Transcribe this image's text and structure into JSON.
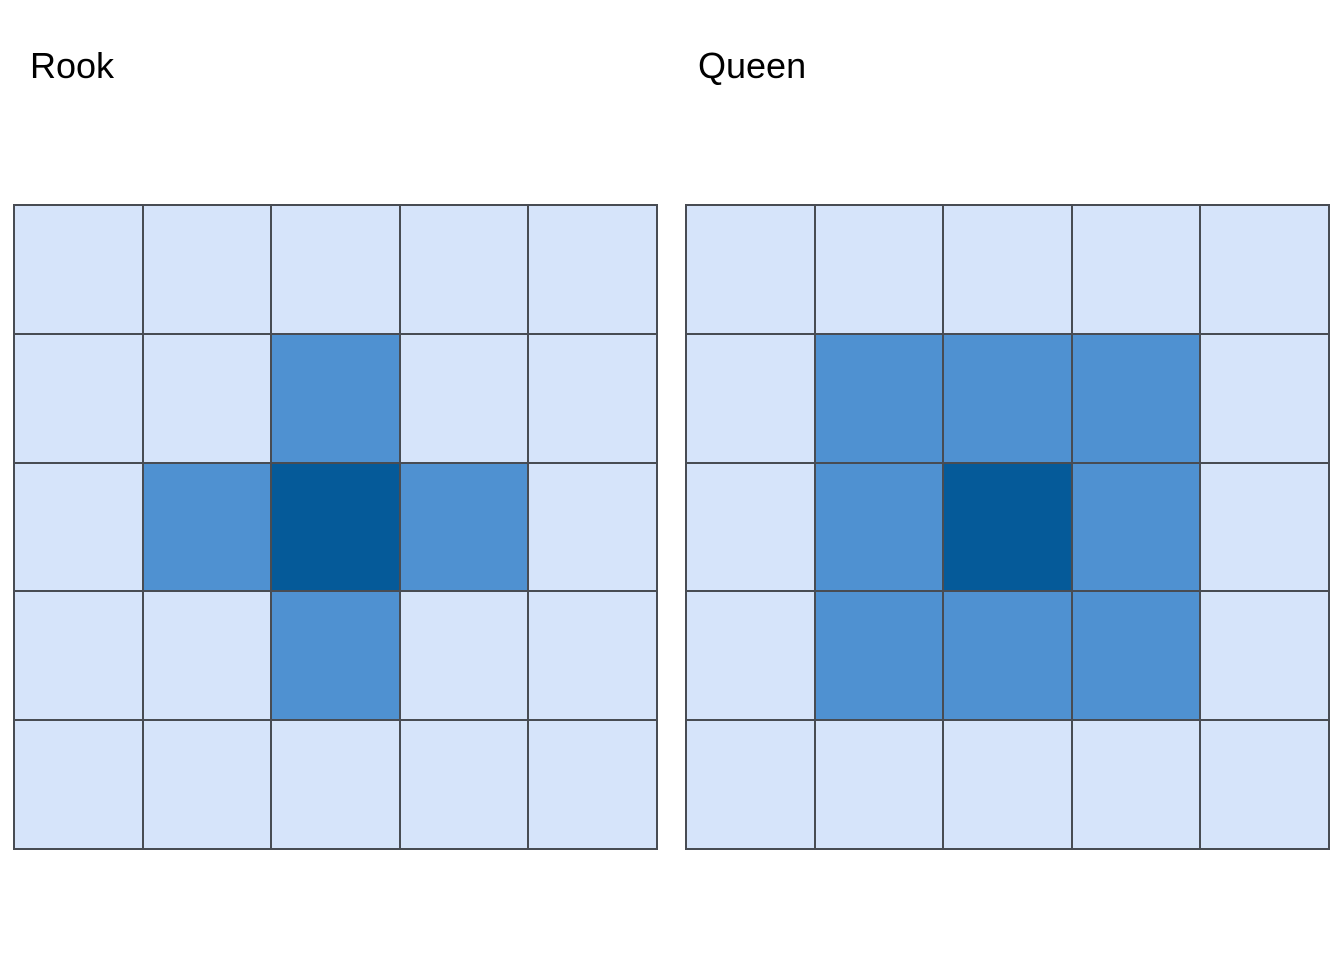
{
  "figure": {
    "background_color": "#ffffff",
    "grid_line_color": "#484c53"
  },
  "chart_data": [
    {
      "type": "heatmap",
      "title": "Rook",
      "rows": 5,
      "cols": 5,
      "matrix": [
        [
          0,
          0,
          0,
          0,
          0
        ],
        [
          0,
          0,
          1,
          0,
          0
        ],
        [
          0,
          1,
          2,
          1,
          0
        ],
        [
          0,
          0,
          1,
          0,
          0
        ],
        [
          0,
          0,
          0,
          0,
          0
        ]
      ],
      "color_scale": {
        "0": "#d6e4fa",
        "1": "#4f91d1",
        "2": "#055a99"
      },
      "legend": "none",
      "axes": "none",
      "description": "5x5 cells; center cell darkest; orthogonally adjacent cells medium blue; all other cells light blue"
    },
    {
      "type": "heatmap",
      "title": "Queen",
      "rows": 5,
      "cols": 5,
      "matrix": [
        [
          0,
          0,
          0,
          0,
          0
        ],
        [
          0,
          1,
          1,
          1,
          0
        ],
        [
          0,
          1,
          2,
          1,
          0
        ],
        [
          0,
          1,
          1,
          1,
          0
        ],
        [
          0,
          0,
          0,
          0,
          0
        ]
      ],
      "color_scale": {
        "0": "#d6e4fa",
        "1": "#4f91d1",
        "2": "#055a99"
      },
      "legend": "none",
      "axes": "none",
      "description": "5x5 cells; center cell darkest; all 8 surrounding cells medium blue; all other cells light blue"
    }
  ]
}
